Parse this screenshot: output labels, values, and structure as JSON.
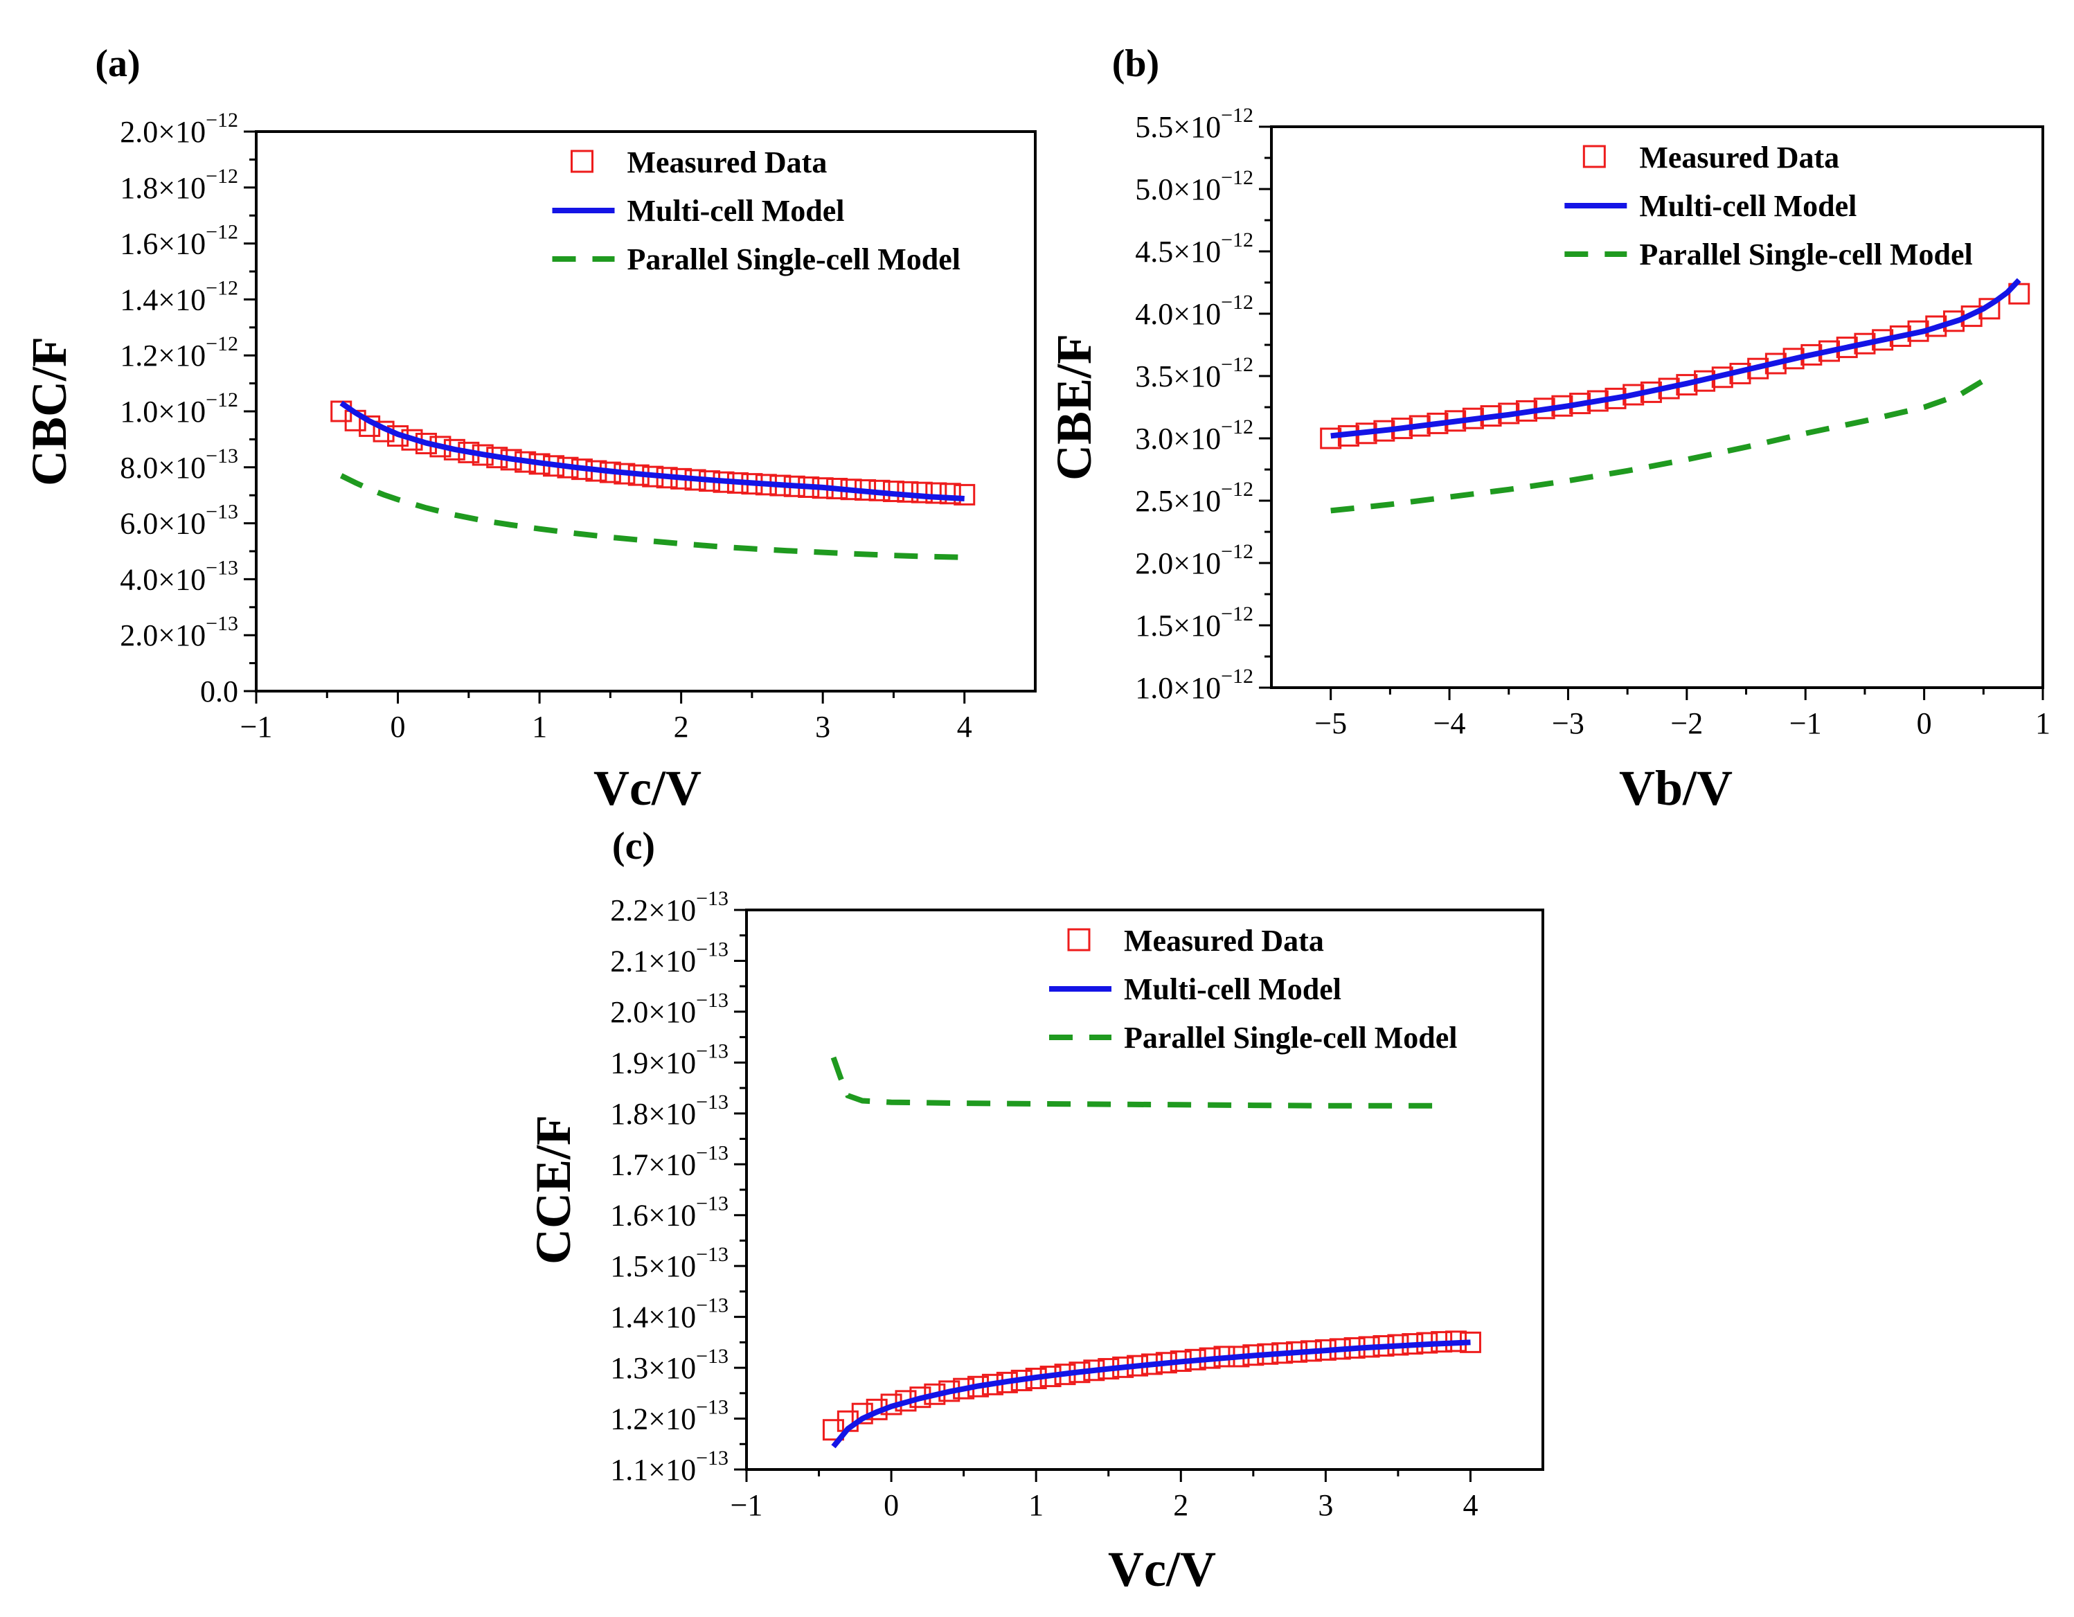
{
  "chart_data": [
    {
      "type": "line",
      "panel_label": "(a)",
      "xlabel": "Vc/V",
      "ylabel": "CBC/F",
      "xlim": [
        -1,
        4.5
      ],
      "ylim": [
        0,
        2e-12
      ],
      "xticks": [
        -1,
        0,
        1,
        2,
        3,
        4
      ],
      "xtick_labels": [
        "−1",
        "0",
        "1",
        "2",
        "3",
        "4"
      ],
      "yticks": [
        0,
        2e-13,
        4e-13,
        6e-13,
        8e-13,
        1e-12,
        1.2e-12,
        1.4e-12,
        1.6e-12,
        1.8e-12,
        2e-12
      ],
      "ytick_labels": [
        {
          "m": "0.0",
          "e": ""
        },
        {
          "m": "2.0×10",
          "e": "−13"
        },
        {
          "m": "4.0×10",
          "e": "−13"
        },
        {
          "m": "6.0×10",
          "e": "−13"
        },
        {
          "m": "8.0×10",
          "e": "−13"
        },
        {
          "m": "1.0×10",
          "e": "−12"
        },
        {
          "m": "1.2×10",
          "e": "−12"
        },
        {
          "m": "1.4×10",
          "e": "−12"
        },
        {
          "m": "1.6×10",
          "e": "−12"
        },
        {
          "m": "1.8×10",
          "e": "−12"
        },
        {
          "m": "2.0×10",
          "e": "−12"
        }
      ],
      "legend": [
        "Measured Data",
        "Multi-cell Model",
        "Parallel Single-cell Model"
      ],
      "legend_position": "top-right",
      "series": [
        {
          "name": "Measured Data",
          "style": "marker",
          "x": [
            -0.4,
            -0.3,
            -0.2,
            -0.1,
            0.0,
            0.1,
            0.2,
            0.3,
            0.4,
            0.5,
            0.6,
            0.7,
            0.8,
            0.9,
            1.0,
            1.1,
            1.2,
            1.3,
            1.4,
            1.5,
            1.6,
            1.7,
            1.8,
            1.9,
            2.0,
            2.1,
            2.2,
            2.3,
            2.4,
            2.5,
            2.6,
            2.7,
            2.8,
            2.9,
            3.0,
            3.1,
            3.2,
            3.3,
            3.4,
            3.5,
            3.6,
            3.7,
            3.8,
            3.9,
            4.0
          ],
          "y": [
            1e-12,
            9.67e-13,
            9.47e-13,
            9.28e-13,
            9.12e-13,
            8.98e-13,
            8.85e-13,
            8.74e-13,
            8.63e-13,
            8.53e-13,
            8.44e-13,
            8.35e-13,
            8.27e-13,
            8.19e-13,
            8.12e-13,
            8.05e-13,
            7.99e-13,
            7.93e-13,
            7.87e-13,
            7.82e-13,
            7.77e-13,
            7.72e-13,
            7.67e-13,
            7.63e-13,
            7.59e-13,
            7.55e-13,
            7.51e-13,
            7.47e-13,
            7.44e-13,
            7.41e-13,
            7.38e-13,
            7.35e-13,
            7.32e-13,
            7.29e-13,
            7.26e-13,
            7.24e-13,
            7.21e-13,
            7.19e-13,
            7.17e-13,
            7.14e-13,
            7.12e-13,
            7.1e-13,
            7.08e-13,
            7.06e-13,
            7.02e-13
          ]
        },
        {
          "name": "Multi-cell Model",
          "style": "solid",
          "x": [
            -0.4,
            -0.3,
            -0.2,
            -0.1,
            0.0,
            0.2,
            0.4,
            0.6,
            0.8,
            1.0,
            1.25,
            1.5,
            1.75,
            2.0,
            2.25,
            2.5,
            2.75,
            3.0,
            3.25,
            3.5,
            3.75,
            4.0
          ],
          "y": [
            1.03e-12,
            9.95e-13,
            9.65e-13,
            9.4e-13,
            9.18e-13,
            8.87e-13,
            8.64e-13,
            8.46e-13,
            8.3e-13,
            8.16e-13,
            8e-13,
            7.86e-13,
            7.74e-13,
            7.63e-13,
            7.53e-13,
            7.44e-13,
            7.36e-13,
            7.28e-13,
            7.16e-13,
            7.05e-13,
            6.95e-13,
            6.88e-13
          ]
        },
        {
          "name": "Parallel Single-cell Model",
          "style": "dashed",
          "x": [
            -0.4,
            -0.3,
            -0.2,
            -0.1,
            0.0,
            0.2,
            0.4,
            0.6,
            0.8,
            1.0,
            1.25,
            1.5,
            1.75,
            2.0,
            2.25,
            2.5,
            2.75,
            3.0,
            3.25,
            3.5,
            3.75,
            4.0
          ],
          "y": [
            7.7e-13,
            7.45e-13,
            7.22e-13,
            7.02e-13,
            6.85e-13,
            6.55e-13,
            6.3e-13,
            6.1e-13,
            5.94e-13,
            5.8e-13,
            5.64e-13,
            5.5e-13,
            5.38e-13,
            5.27e-13,
            5.17e-13,
            5.09e-13,
            5.02e-13,
            4.96e-13,
            4.9e-13,
            4.85e-13,
            4.81e-13,
            4.78e-13
          ]
        }
      ]
    },
    {
      "type": "line",
      "panel_label": "(b)",
      "xlabel": "Vb/V",
      "ylabel": "CBE/F",
      "xlim": [
        -5.5,
        1
      ],
      "ylim": [
        1e-12,
        5.5e-12
      ],
      "xticks": [
        -5,
        -4,
        -3,
        -2,
        -1,
        0,
        1
      ],
      "xtick_labels": [
        "−5",
        "−4",
        "−3",
        "−2",
        "−1",
        "0",
        "1"
      ],
      "yticks": [
        1e-12,
        1.5e-12,
        2e-12,
        2.5e-12,
        3e-12,
        3.5e-12,
        4e-12,
        4.5e-12,
        5e-12,
        5.5e-12
      ],
      "ytick_labels": [
        {
          "m": "1.0×10",
          "e": "−12"
        },
        {
          "m": "1.5×10",
          "e": "−12"
        },
        {
          "m": "2.0×10",
          "e": "−12"
        },
        {
          "m": "2.5×10",
          "e": "−12"
        },
        {
          "m": "3.0×10",
          "e": "−12"
        },
        {
          "m": "3.5×10",
          "e": "−12"
        },
        {
          "m": "4.0×10",
          "e": "−12"
        },
        {
          "m": "4.5×10",
          "e": "−12"
        },
        {
          "m": "5.0×10",
          "e": "−12"
        },
        {
          "m": "5.5×10",
          "e": "−12"
        }
      ],
      "legend": [
        "Measured Data",
        "Multi-cell Model",
        "Parallel Single-cell Model"
      ],
      "legend_position": "top-right",
      "series": [
        {
          "name": "Measured Data",
          "style": "marker",
          "x": [
            -5.0,
            -4.85,
            -4.7,
            -4.55,
            -4.4,
            -4.25,
            -4.1,
            -3.95,
            -3.8,
            -3.65,
            -3.5,
            -3.35,
            -3.2,
            -3.05,
            -2.9,
            -2.75,
            -2.6,
            -2.45,
            -2.3,
            -2.15,
            -2.0,
            -1.85,
            -1.7,
            -1.55,
            -1.4,
            -1.25,
            -1.1,
            -0.95,
            -0.8,
            -0.65,
            -0.5,
            -0.35,
            -0.2,
            -0.05,
            0.1,
            0.25,
            0.4,
            0.55,
            0.8
          ],
          "y": [
            3e-12,
            3.02e-12,
            3.04e-12,
            3.06e-12,
            3.08e-12,
            3.1e-12,
            3.12e-12,
            3.14e-12,
            3.16e-12,
            3.18e-12,
            3.2e-12,
            3.22e-12,
            3.24e-12,
            3.26e-12,
            3.28e-12,
            3.3e-12,
            3.32e-12,
            3.35e-12,
            3.37e-12,
            3.4e-12,
            3.43e-12,
            3.46e-12,
            3.49e-12,
            3.52e-12,
            3.56e-12,
            3.6e-12,
            3.64e-12,
            3.67e-12,
            3.7e-12,
            3.73e-12,
            3.76e-12,
            3.79e-12,
            3.82e-12,
            3.86e-12,
            3.9e-12,
            3.94e-12,
            3.98e-12,
            4.04e-12,
            4.16e-12
          ]
        },
        {
          "name": "Multi-cell Model",
          "style": "solid",
          "x": [
            -5.0,
            -4.5,
            -4.0,
            -3.5,
            -3.0,
            -2.5,
            -2.0,
            -1.5,
            -1.0,
            -0.5,
            0.0,
            0.3,
            0.5,
            0.6,
            0.7,
            0.8
          ],
          "y": [
            3.02e-12,
            3.07e-12,
            3.13e-12,
            3.19e-12,
            3.26e-12,
            3.34e-12,
            3.44e-12,
            3.55e-12,
            3.66e-12,
            3.76e-12,
            3.86e-12,
            3.95e-12,
            4.04e-12,
            4.1e-12,
            4.17e-12,
            4.27e-12
          ]
        },
        {
          "name": "Parallel Single-cell Model",
          "style": "dashed",
          "x": [
            -5.0,
            -4.5,
            -4.0,
            -3.5,
            -3.0,
            -2.5,
            -2.0,
            -1.5,
            -1.0,
            -0.5,
            0.0,
            0.3,
            0.6
          ],
          "y": [
            2.42e-12,
            2.47e-12,
            2.53e-12,
            2.59e-12,
            2.66e-12,
            2.74e-12,
            2.83e-12,
            2.93e-12,
            3.04e-12,
            3.14e-12,
            3.25e-12,
            3.35e-12,
            3.52e-12
          ]
        }
      ]
    },
    {
      "type": "line",
      "panel_label": "(c)",
      "xlabel": "Vc/V",
      "ylabel": "CCE/F",
      "xlim": [
        -1,
        4.5
      ],
      "ylim": [
        1.1e-13,
        2.2e-13
      ],
      "xticks": [
        -1,
        0,
        1,
        2,
        3,
        4
      ],
      "xtick_labels": [
        "−1",
        "0",
        "1",
        "2",
        "3",
        "4"
      ],
      "yticks": [
        1.1e-13,
        1.2e-13,
        1.3e-13,
        1.4e-13,
        1.5e-13,
        1.6e-13,
        1.7e-13,
        1.8e-13,
        1.9e-13,
        2e-13,
        2.1e-13,
        2.2e-13
      ],
      "ytick_labels": [
        {
          "m": "1.1×10",
          "e": "−13"
        },
        {
          "m": "1.2×10",
          "e": "−13"
        },
        {
          "m": "1.3×10",
          "e": "−13"
        },
        {
          "m": "1.4×10",
          "e": "−13"
        },
        {
          "m": "1.5×10",
          "e": "−13"
        },
        {
          "m": "1.6×10",
          "e": "−13"
        },
        {
          "m": "1.7×10",
          "e": "−13"
        },
        {
          "m": "1.8×10",
          "e": "−13"
        },
        {
          "m": "1.9×10",
          "e": "−13"
        },
        {
          "m": "2.0×10",
          "e": "−13"
        },
        {
          "m": "2.1×10",
          "e": "−13"
        },
        {
          "m": "2.2×10",
          "e": "−13"
        }
      ],
      "legend": [
        "Measured Data",
        "Multi-cell Model",
        "Parallel Single-cell Model"
      ],
      "legend_position": "top-right",
      "series": [
        {
          "name": "Measured Data",
          "style": "marker",
          "x": [
            -0.4,
            -0.3,
            -0.2,
            -0.1,
            0.0,
            0.1,
            0.2,
            0.3,
            0.4,
            0.5,
            0.6,
            0.7,
            0.8,
            0.9,
            1.0,
            1.1,
            1.2,
            1.3,
            1.4,
            1.5,
            1.6,
            1.7,
            1.8,
            1.9,
            2.0,
            2.1,
            2.2,
            2.3,
            2.4,
            2.5,
            2.6,
            2.7,
            2.8,
            2.9,
            3.0,
            3.1,
            3.2,
            3.3,
            3.4,
            3.5,
            3.6,
            3.7,
            3.8,
            3.9,
            4.0
          ],
          "y": [
            1.178e-13,
            1.195e-13,
            1.21e-13,
            1.218e-13,
            1.228e-13,
            1.235e-13,
            1.242e-13,
            1.248e-13,
            1.254e-13,
            1.259e-13,
            1.263e-13,
            1.267e-13,
            1.271e-13,
            1.275e-13,
            1.279e-13,
            1.283e-13,
            1.287e-13,
            1.291e-13,
            1.295e-13,
            1.298e-13,
            1.301e-13,
            1.304e-13,
            1.307e-13,
            1.31e-13,
            1.313e-13,
            1.316e-13,
            1.319e-13,
            1.322e-13,
            1.322e-13,
            1.325e-13,
            1.327e-13,
            1.329e-13,
            1.331e-13,
            1.333e-13,
            1.335e-13,
            1.337e-13,
            1.339e-13,
            1.341e-13,
            1.343e-13,
            1.345e-13,
            1.347e-13,
            1.349e-13,
            1.351e-13,
            1.352e-13,
            1.35e-13
          ]
        },
        {
          "name": "Multi-cell Model",
          "style": "solid",
          "x": [
            -0.4,
            -0.3,
            -0.2,
            -0.1,
            0.0,
            0.2,
            0.4,
            0.6,
            0.8,
            1.0,
            1.25,
            1.5,
            1.75,
            2.0,
            2.25,
            2.5,
            2.75,
            3.0,
            3.25,
            3.5,
            3.75,
            4.0
          ],
          "y": [
            1.145e-13,
            1.18e-13,
            1.2e-13,
            1.213e-13,
            1.224e-13,
            1.24e-13,
            1.253e-13,
            1.264e-13,
            1.273e-13,
            1.281e-13,
            1.29e-13,
            1.298e-13,
            1.305e-13,
            1.312e-13,
            1.318e-13,
            1.324e-13,
            1.329e-13,
            1.334e-13,
            1.339e-13,
            1.343e-13,
            1.347e-13,
            1.35e-13
          ]
        },
        {
          "name": "Parallel Single-cell Model",
          "style": "dashed",
          "x": [
            -0.4,
            -0.35,
            -0.3,
            -0.2,
            0.0,
            0.5,
            1.0,
            1.5,
            2.0,
            2.5,
            3.0,
            3.5,
            3.85
          ],
          "y": [
            1.91e-13,
            1.87e-13,
            1.835e-13,
            1.825e-13,
            1.822e-13,
            1.82e-13,
            1.819e-13,
            1.818e-13,
            1.817e-13,
            1.816e-13,
            1.815e-13,
            1.815e-13,
            1.815e-13
          ]
        }
      ]
    }
  ],
  "colors": {
    "measured": "#ee1c1c",
    "multi_cell": "#1414e6",
    "parallel_single_cell": "#1f9a1f",
    "axis": "#000000"
  }
}
